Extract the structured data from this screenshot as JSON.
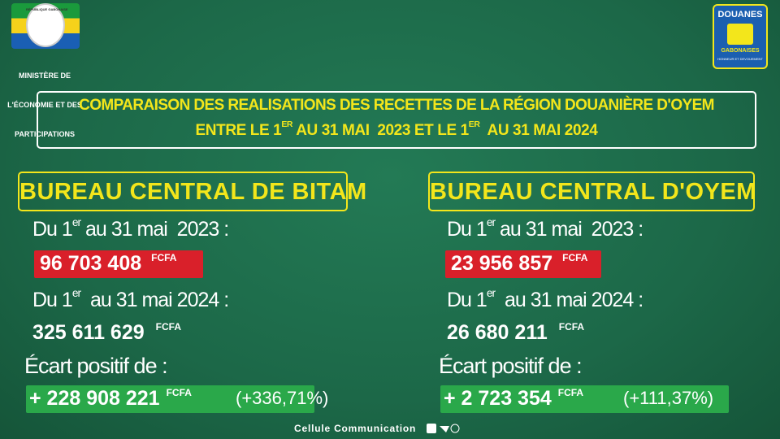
{
  "header": {
    "seal": "RÉPUBLIQUE GABONAISE",
    "ministry": [
      "MINISTÈRE DE",
      "L'ÉCONOMIE ET DES",
      "PARTICIPATIONS"
    ],
    "customs_logo": [
      "DOUANES",
      "GABONAISES",
      "HONNEUR ET DEVOUEMENT"
    ]
  },
  "title": {
    "line1": "COMPARAISON DES REALISATIONS DES RECETTES DE LA RÉGION DOUANIÈRE D'OYEM",
    "line2": [
      "ENTRE LE 1",
      "ER",
      " AU 31 MAI  2023 ET LE 1",
      "ER",
      "  AU 31 MAI 2024"
    ]
  },
  "panels": [
    {
      "title": "BUREAU CENTRAL DE BITAM",
      "period_2023": [
        "Du 1",
        "er",
        " au 31 mai  2023 :"
      ],
      "amount_2023": "96 703 408",
      "currency": "FCFA",
      "period_2024": [
        "Du 1",
        "er",
        "  au 31 mai 2024 :"
      ],
      "amount_2024": "325 611 629",
      "difference_label": "Écart positif de :",
      "difference": "+ 228 908 221",
      "difference_percent": "(+336,71%)"
    },
    {
      "title": "BUREAU CENTRAL D'OYEM",
      "period_2023": [
        "Du 1",
        "er",
        " au 31 mai  2023 :"
      ],
      "amount_2023": "23 956 857",
      "currency": "FCFA",
      "period_2024": [
        "Du 1",
        "er",
        "  au 31 mai 2024 :"
      ],
      "amount_2024": "26 680 211",
      "difference_label": "Écart positif de :",
      "difference": "+ 2 723 354",
      "difference_percent": "(+111,37%)"
    }
  ],
  "footer": "Cellule Communication"
}
